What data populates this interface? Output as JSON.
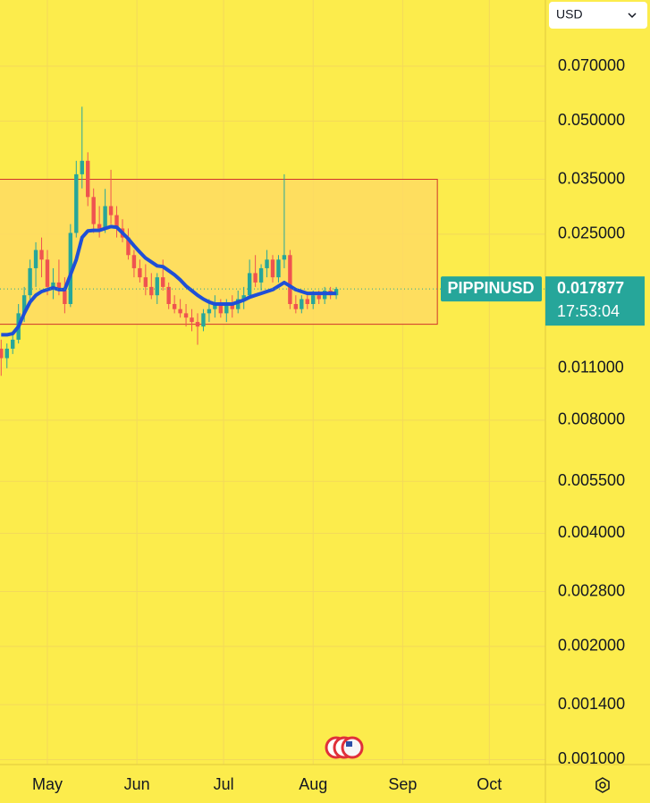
{
  "currency": "USD",
  "chart_data": {
    "type": "candlestick",
    "log_scale": true,
    "grid": true,
    "background": "#fcec4c",
    "grid_color": "#f3d95a",
    "up_color": "#26a69a",
    "down_color": "#ef5350",
    "x": [
      105,
      107,
      109,
      111,
      113,
      115,
      117,
      119,
      121,
      123,
      125,
      127,
      129,
      131,
      133,
      135,
      137,
      139,
      141,
      143,
      145,
      147,
      149,
      151,
      153,
      155,
      157,
      159,
      161,
      163,
      165,
      167,
      169,
      171,
      173,
      175,
      177,
      179,
      181,
      183,
      185,
      187,
      189,
      191,
      193,
      195,
      197,
      199,
      201,
      203,
      205,
      207,
      209,
      211,
      213,
      215,
      217,
      219,
      221
    ],
    "open": [
      0.0124,
      0.0117,
      0.0124,
      0.0131,
      0.0154,
      0.0172,
      0.0203,
      0.0227,
      0.0214,
      0.0181,
      0.0186,
      0.0177,
      0.0163,
      0.0252,
      0.0361,
      0.0392,
      0.0314,
      0.0266,
      0.0259,
      0.0297,
      0.0281,
      0.0259,
      0.0245,
      0.022,
      0.0203,
      0.0192,
      0.0181,
      0.0172,
      0.0192,
      0.0181,
      0.0163,
      0.0158,
      0.0154,
      0.015,
      0.0146,
      0.0142,
      0.0154,
      0.0158,
      0.0163,
      0.0154,
      0.0163,
      0.0158,
      0.0168,
      0.0172,
      0.0197,
      0.0186,
      0.0203,
      0.0214,
      0.0192,
      0.0214,
      0.022,
      0.0163,
      0.0158,
      0.0168,
      0.0163,
      0.0172,
      0.0168,
      0.0177,
      0.0172
    ],
    "high": [
      0.0131,
      0.0128,
      0.0138,
      0.0163,
      0.0181,
      0.0214,
      0.0238,
      0.0245,
      0.0227,
      0.0203,
      0.0214,
      0.0192,
      0.0266,
      0.0392,
      0.0546,
      0.0413,
      0.0331,
      0.0297,
      0.033,
      0.0371,
      0.0297,
      0.0274,
      0.0259,
      0.0227,
      0.0214,
      0.0208,
      0.0197,
      0.0197,
      0.0214,
      0.0186,
      0.0172,
      0.0168,
      0.0163,
      0.0158,
      0.0154,
      0.0158,
      0.0168,
      0.0172,
      0.0168,
      0.0168,
      0.0172,
      0.0177,
      0.0181,
      0.0214,
      0.022,
      0.0208,
      0.0227,
      0.022,
      0.022,
      0.0361,
      0.0227,
      0.0172,
      0.0172,
      0.0172,
      0.0177,
      0.0177,
      0.0181,
      0.0181,
      0.0181
    ],
    "low": [
      0.0105,
      0.011,
      0.012,
      0.0128,
      0.0146,
      0.0163,
      0.0181,
      0.0192,
      0.0172,
      0.0168,
      0.0172,
      0.0154,
      0.016,
      0.0245,
      0.0331,
      0.0297,
      0.0252,
      0.0245,
      0.0252,
      0.0266,
      0.0245,
      0.0238,
      0.0214,
      0.0192,
      0.0186,
      0.0172,
      0.0168,
      0.0163,
      0.0177,
      0.0158,
      0.0154,
      0.015,
      0.0142,
      0.0138,
      0.0127,
      0.0138,
      0.0146,
      0.015,
      0.015,
      0.0146,
      0.015,
      0.0154,
      0.0158,
      0.0168,
      0.0181,
      0.0177,
      0.0192,
      0.0186,
      0.0186,
      0.0203,
      0.0158,
      0.0154,
      0.0154,
      0.0158,
      0.0158,
      0.0163,
      0.0163,
      0.0168,
      0.0168
    ],
    "close": [
      0.0117,
      0.0124,
      0.0131,
      0.0154,
      0.0172,
      0.0203,
      0.0227,
      0.0214,
      0.0181,
      0.0186,
      0.0177,
      0.0163,
      0.0252,
      0.0361,
      0.0392,
      0.0314,
      0.0266,
      0.0259,
      0.0297,
      0.0281,
      0.0259,
      0.0245,
      0.022,
      0.0203,
      0.0192,
      0.0181,
      0.0172,
      0.0192,
      0.0181,
      0.0163,
      0.0158,
      0.0154,
      0.015,
      0.0146,
      0.0142,
      0.0154,
      0.0158,
      0.0163,
      0.0154,
      0.0163,
      0.0158,
      0.0168,
      0.0172,
      0.0197,
      0.0186,
      0.0203,
      0.0214,
      0.0192,
      0.0214,
      0.022,
      0.0163,
      0.0158,
      0.0168,
      0.0163,
      0.0172,
      0.0168,
      0.0177,
      0.0172,
      0.01788
    ],
    "ma": {
      "color": "#1f4fd6",
      "values": [
        0.0135,
        0.0135,
        0.0136,
        0.0142,
        0.0154,
        0.0165,
        0.0172,
        0.0176,
        0.0178,
        0.018,
        0.0178,
        0.0178,
        0.0195,
        0.0214,
        0.0245,
        0.0255,
        0.0256,
        0.0256,
        0.0259,
        0.0262,
        0.0261,
        0.0252,
        0.0243,
        0.0233,
        0.0224,
        0.0216,
        0.0211,
        0.0206,
        0.0205,
        0.02,
        0.0195,
        0.0189,
        0.0182,
        0.0177,
        0.0172,
        0.0168,
        0.0165,
        0.0163,
        0.0163,
        0.0163,
        0.0163,
        0.0165,
        0.0167,
        0.017,
        0.0172,
        0.0174,
        0.0176,
        0.0178,
        0.0182,
        0.0186,
        0.0182,
        0.0178,
        0.0176,
        0.0174,
        0.0174,
        0.0174,
        0.0174,
        0.0174,
        0.0174
      ]
    },
    "range_box": {
      "x": [
        100,
        256
      ],
      "y": [
        0.0144,
        0.035
      ],
      "fill": "#ffd966",
      "stroke": "#d0342c"
    },
    "last_price": {
      "symbol": "PIPPINUSD",
      "value": 0.017877,
      "countdown": "17:53:04",
      "color": "#26a69a"
    },
    "xlim": [
      104.6,
      293.4
    ],
    "xticks": [
      {
        "value": 121,
        "label": "May"
      },
      {
        "value": 152,
        "label": "Jun"
      },
      {
        "value": 182,
        "label": "Jul"
      },
      {
        "value": 213,
        "label": "Aug"
      },
      {
        "value": 244,
        "label": "Sep"
      },
      {
        "value": 274,
        "label": "Oct"
      }
    ],
    "ylim": [
      0.00097,
      0.105
    ],
    "yticks": [
      {
        "value": 0.07,
        "label": "0.070000"
      },
      {
        "value": 0.05,
        "label": "0.050000"
      },
      {
        "value": 0.035,
        "label": "0.035000"
      },
      {
        "value": 0.025,
        "label": "0.025000"
      },
      {
        "value": 0.011,
        "label": "0.011000"
      },
      {
        "value": 0.008,
        "label": "0.008000"
      },
      {
        "value": 0.0055,
        "label": "0.005500"
      },
      {
        "value": 0.004,
        "label": "0.004000"
      },
      {
        "value": 0.0028,
        "label": "0.002800"
      },
      {
        "value": 0.002,
        "label": "0.002000"
      },
      {
        "value": 0.0014,
        "label": "0.001400"
      },
      {
        "value": 0.001,
        "label": "0.001000"
      }
    ]
  }
}
